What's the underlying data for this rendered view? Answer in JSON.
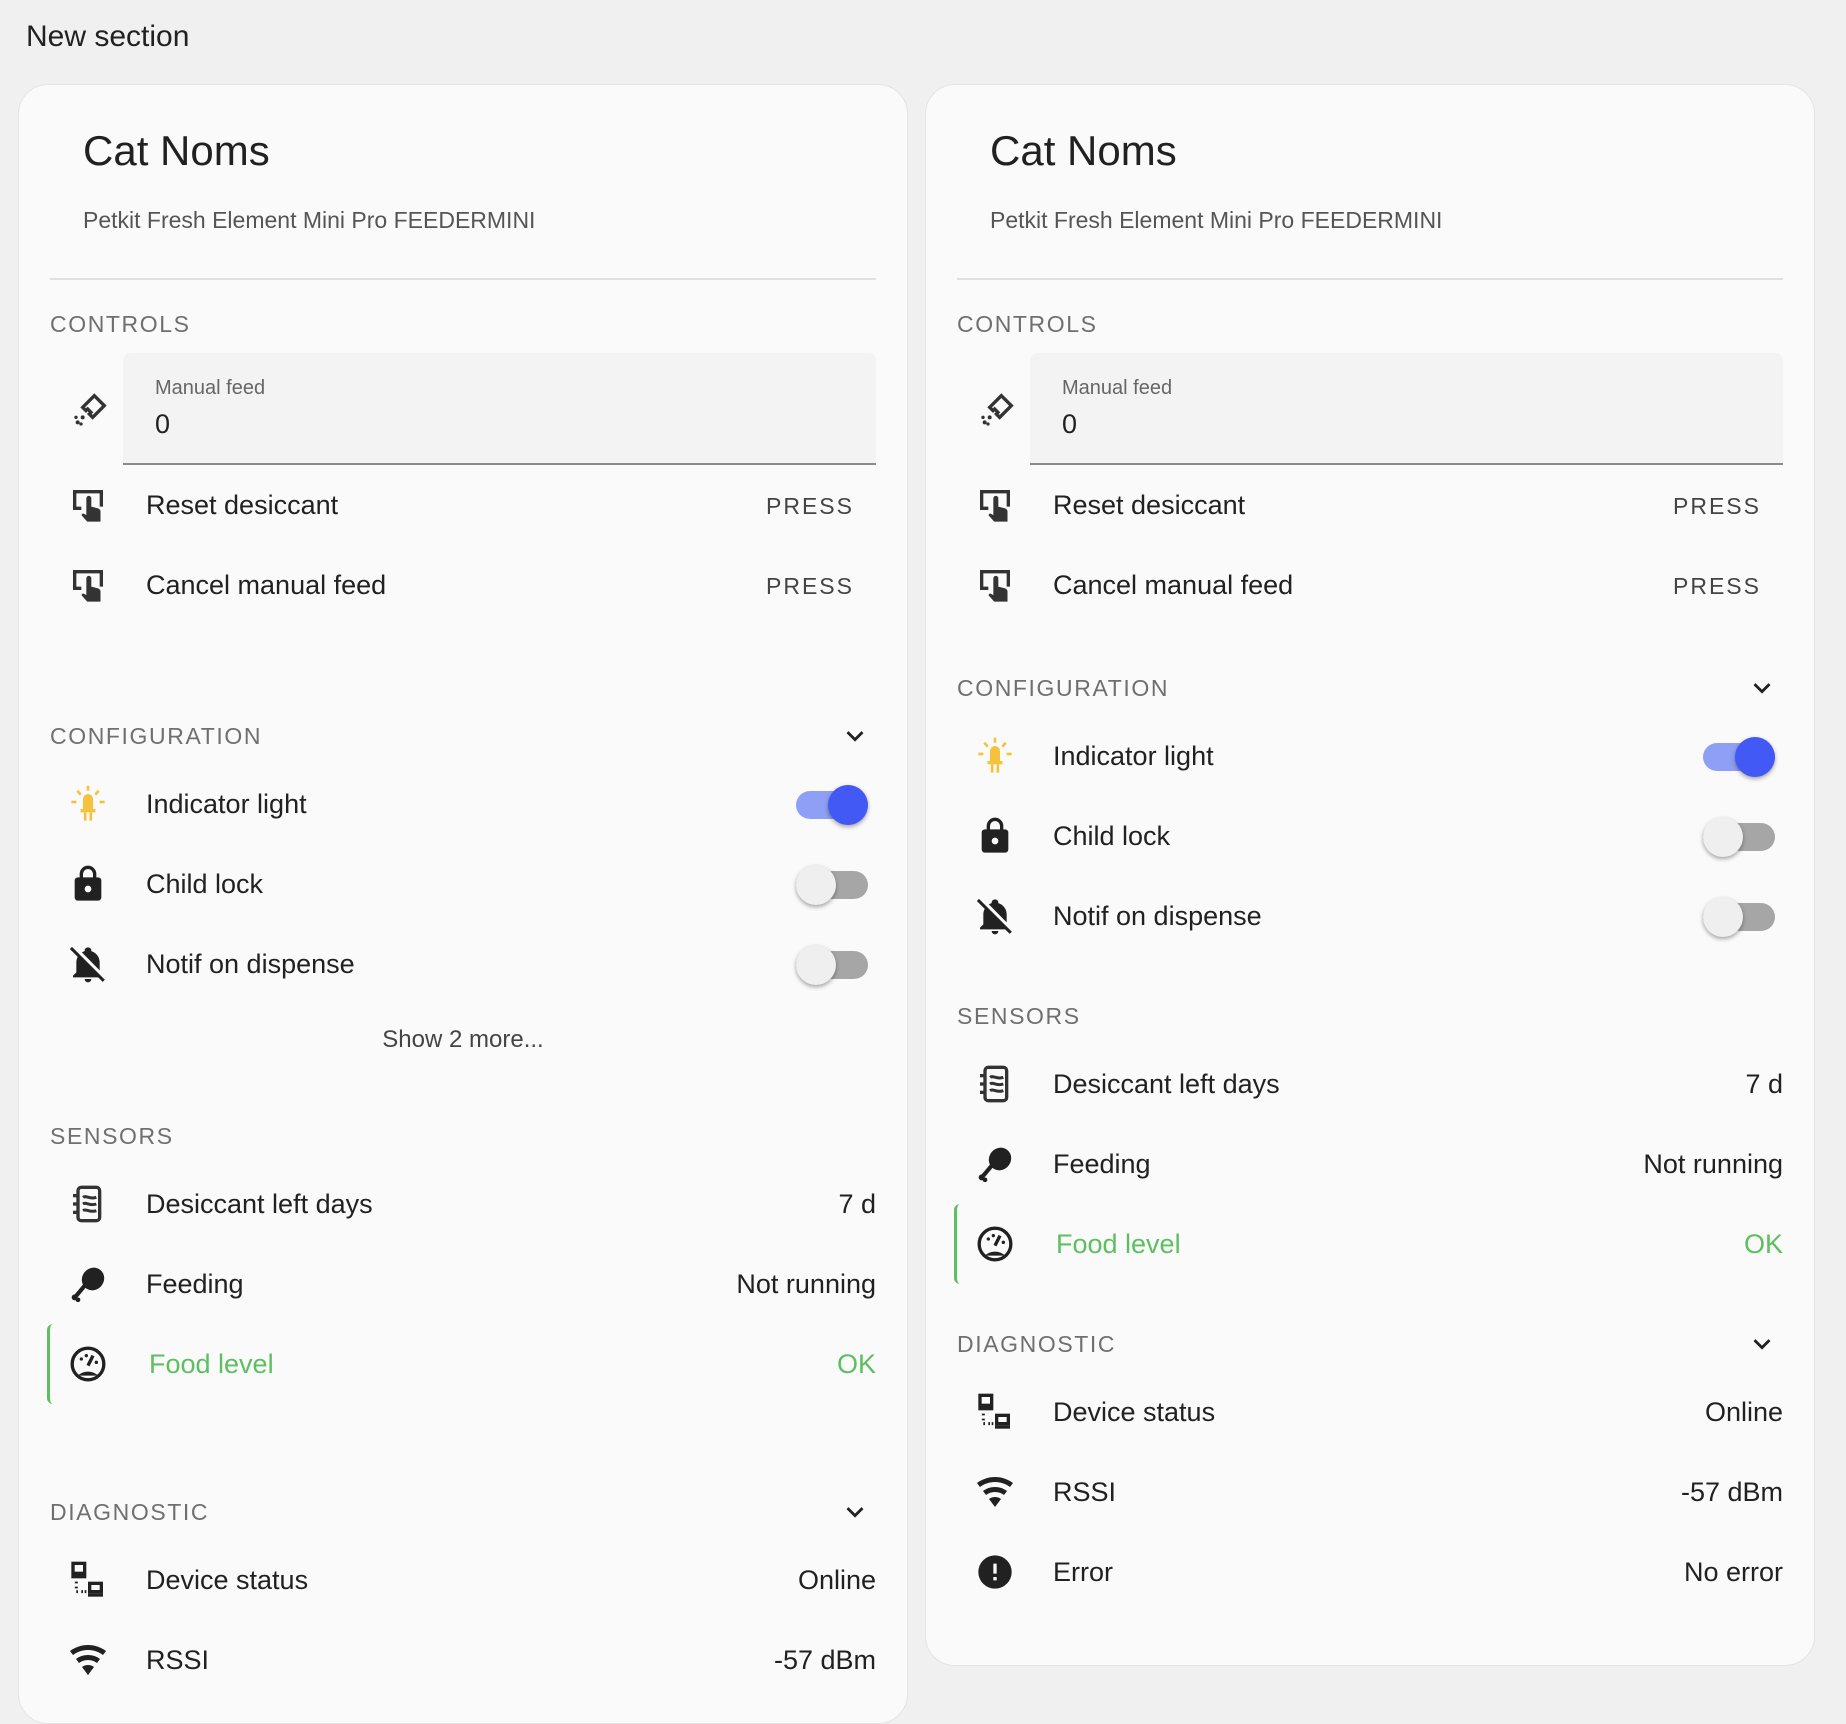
{
  "page": {
    "section_title": "New section"
  },
  "colors": {
    "accent_on": "#4259f5",
    "ok_green": "#5dbf5f",
    "indicator_yellow": "#f4c23c"
  },
  "cards": [
    {
      "title": "Cat Noms",
      "subtitle": "Petkit Fresh Element Mini Pro FEEDERMINI",
      "controls": {
        "label": "CONTROLS",
        "manual_feed": {
          "label": "Manual feed",
          "value": "0",
          "icon": "feed-icon"
        },
        "buttons": [
          {
            "label": "Reset desiccant",
            "action": "PRESS",
            "icon": "gesture-tap-button-icon"
          },
          {
            "label": "Cancel manual feed",
            "action": "PRESS",
            "icon": "gesture-tap-button-icon"
          }
        ]
      },
      "configuration": {
        "label": "CONFIGURATION",
        "items": [
          {
            "label": "Indicator light",
            "on": true,
            "icon": "led-on-icon"
          },
          {
            "label": "Child lock",
            "on": false,
            "icon": "lock-icon"
          },
          {
            "label": "Notif on dispense",
            "on": false,
            "icon": "bell-off-icon"
          }
        ],
        "show_more": "Show 2 more..."
      },
      "sensors": {
        "label": "SENSORS",
        "items": [
          {
            "label": "Desiccant left days",
            "value": "7 d",
            "icon": "desiccant-icon"
          },
          {
            "label": "Feeding",
            "value": "Not running",
            "icon": "food-drumstick-icon"
          },
          {
            "label": "Food level",
            "value": "OK",
            "icon": "gauge-icon",
            "highlight": true
          }
        ]
      },
      "diagnostic": {
        "label": "DIAGNOSTIC",
        "items": [
          {
            "label": "Device status",
            "value": "Online",
            "icon": "lan-connect-icon"
          },
          {
            "label": "RSSI",
            "value": "-57 dBm",
            "icon": "wifi-icon"
          }
        ]
      }
    },
    {
      "title": "Cat Noms",
      "subtitle": "Petkit Fresh Element Mini Pro FEEDERMINI",
      "controls": {
        "label": "CONTROLS",
        "manual_feed": {
          "label": "Manual feed",
          "value": "0",
          "icon": "feed-icon"
        },
        "buttons": [
          {
            "label": "Reset desiccant",
            "action": "PRESS",
            "icon": "gesture-tap-button-icon"
          },
          {
            "label": "Cancel manual feed",
            "action": "PRESS",
            "icon": "gesture-tap-button-icon"
          }
        ]
      },
      "configuration": {
        "label": "CONFIGURATION",
        "items": [
          {
            "label": "Indicator light",
            "on": true,
            "icon": "led-on-icon"
          },
          {
            "label": "Child lock",
            "on": false,
            "icon": "lock-icon"
          },
          {
            "label": "Notif on dispense",
            "on": false,
            "icon": "bell-off-icon"
          }
        ]
      },
      "sensors": {
        "label": "SENSORS",
        "items": [
          {
            "label": "Desiccant left days",
            "value": "7 d",
            "icon": "desiccant-icon"
          },
          {
            "label": "Feeding",
            "value": "Not running",
            "icon": "food-drumstick-icon"
          },
          {
            "label": "Food level",
            "value": "OK",
            "icon": "gauge-icon",
            "highlight": true
          }
        ]
      },
      "diagnostic": {
        "label": "DIAGNOSTIC",
        "items": [
          {
            "label": "Device status",
            "value": "Online",
            "icon": "lan-connect-icon"
          },
          {
            "label": "RSSI",
            "value": "-57 dBm",
            "icon": "wifi-icon"
          },
          {
            "label": "Error",
            "value": "No error",
            "icon": "alert-circle-icon"
          }
        ]
      }
    }
  ]
}
